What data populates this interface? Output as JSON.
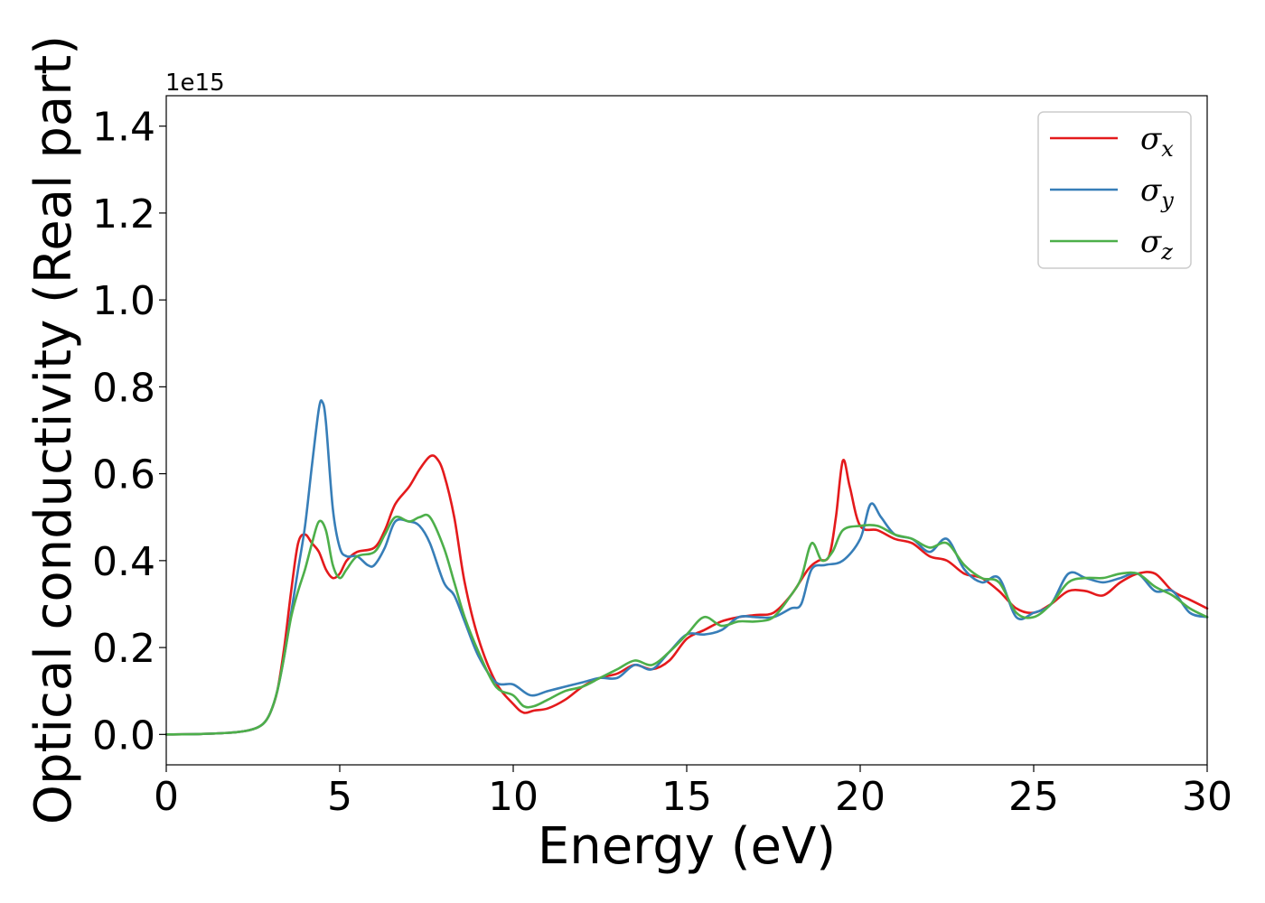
{
  "chart_data": {
    "type": "line",
    "xlabel": "Energy (eV)",
    "ylabel": "Optical conductivity (Real part)",
    "y_offset_text": "1e15",
    "xlim": [
      0,
      30
    ],
    "ylim": [
      -0.07,
      1.47
    ],
    "xticks": [
      0,
      5,
      10,
      15,
      20,
      25,
      30
    ],
    "xtick_labels": [
      "0",
      "5",
      "10",
      "15",
      "20",
      "25",
      "30"
    ],
    "yticks": [
      0.0,
      0.2,
      0.4,
      0.6,
      0.8,
      1.0,
      1.2,
      1.4
    ],
    "ytick_labels": [
      "0.0",
      "0.2",
      "0.4",
      "0.6",
      "0.8",
      "1.0",
      "1.2",
      "1.4"
    ],
    "grid": false,
    "legend_position": "top-right",
    "series": [
      {
        "name": "σx",
        "legend_symbol": "σ",
        "legend_subscript": "x",
        "color": "#e41a1c",
        "x": [
          0,
          1,
          2,
          2.5,
          2.8,
          3.0,
          3.2,
          3.4,
          3.6,
          3.8,
          4.0,
          4.2,
          4.4,
          4.6,
          4.8,
          5.0,
          5.2,
          5.5,
          6.0,
          6.3,
          6.6,
          7.0,
          7.3,
          7.6,
          7.8,
          8.0,
          8.3,
          8.6,
          9.0,
          9.5,
          10.0,
          10.3,
          10.6,
          11.0,
          11.5,
          12.0,
          12.5,
          13.0,
          13.5,
          14.0,
          14.5,
          15.0,
          15.5,
          16.0,
          16.5,
          17.0,
          17.5,
          18.0,
          18.5,
          18.8,
          19.1,
          19.3,
          19.5,
          19.7,
          20.0,
          20.5,
          21.0,
          21.5,
          22.0,
          22.5,
          23.0,
          23.5,
          24.0,
          24.5,
          25.0,
          25.5,
          26.0,
          26.5,
          27.0,
          27.5,
          28.0,
          28.5,
          29.0,
          29.5,
          30.0
        ],
        "y": [
          0.0,
          0.001,
          0.005,
          0.012,
          0.025,
          0.05,
          0.1,
          0.2,
          0.33,
          0.44,
          0.46,
          0.44,
          0.42,
          0.38,
          0.36,
          0.37,
          0.4,
          0.42,
          0.43,
          0.47,
          0.53,
          0.57,
          0.61,
          0.64,
          0.635,
          0.6,
          0.5,
          0.35,
          0.22,
          0.12,
          0.07,
          0.05,
          0.055,
          0.06,
          0.08,
          0.11,
          0.13,
          0.14,
          0.16,
          0.15,
          0.17,
          0.22,
          0.24,
          0.26,
          0.27,
          0.275,
          0.28,
          0.32,
          0.38,
          0.4,
          0.41,
          0.5,
          0.63,
          0.57,
          0.48,
          0.47,
          0.45,
          0.44,
          0.41,
          0.4,
          0.37,
          0.36,
          0.33,
          0.29,
          0.28,
          0.3,
          0.33,
          0.33,
          0.32,
          0.35,
          0.37,
          0.37,
          0.33,
          0.31,
          0.29
        ]
      },
      {
        "name": "σy",
        "legend_symbol": "σ",
        "legend_subscript": "y",
        "color": "#377eb8",
        "x": [
          0,
          1,
          2,
          2.5,
          2.8,
          3.0,
          3.2,
          3.4,
          3.6,
          3.8,
          4.0,
          4.2,
          4.4,
          4.5,
          4.6,
          4.8,
          5.0,
          5.2,
          5.5,
          5.8,
          6.0,
          6.3,
          6.6,
          7.0,
          7.3,
          7.6,
          8.0,
          8.3,
          8.6,
          9.0,
          9.5,
          10.0,
          10.5,
          11.0,
          11.5,
          12.0,
          12.5,
          13.0,
          13.5,
          14.0,
          14.5,
          15.0,
          15.5,
          16.0,
          16.5,
          17.0,
          17.5,
          18.0,
          18.3,
          18.6,
          19.0,
          19.5,
          20.0,
          20.3,
          20.6,
          21.0,
          21.5,
          22.0,
          22.5,
          23.0,
          23.5,
          24.0,
          24.5,
          25.0,
          25.5,
          26.0,
          26.5,
          27.0,
          27.5,
          28.0,
          28.5,
          29.0,
          29.5,
          30.0
        ],
        "y": [
          0.0,
          0.001,
          0.005,
          0.012,
          0.025,
          0.05,
          0.1,
          0.18,
          0.28,
          0.38,
          0.48,
          0.62,
          0.75,
          0.765,
          0.72,
          0.52,
          0.43,
          0.41,
          0.41,
          0.39,
          0.39,
          0.43,
          0.49,
          0.49,
          0.48,
          0.44,
          0.35,
          0.32,
          0.26,
          0.18,
          0.12,
          0.115,
          0.09,
          0.1,
          0.11,
          0.12,
          0.13,
          0.13,
          0.16,
          0.15,
          0.19,
          0.23,
          0.23,
          0.24,
          0.27,
          0.27,
          0.27,
          0.29,
          0.3,
          0.38,
          0.39,
          0.4,
          0.45,
          0.53,
          0.5,
          0.46,
          0.45,
          0.42,
          0.45,
          0.38,
          0.35,
          0.36,
          0.27,
          0.28,
          0.3,
          0.37,
          0.36,
          0.35,
          0.36,
          0.37,
          0.33,
          0.33,
          0.28,
          0.27
        ]
      },
      {
        "name": "σz",
        "legend_symbol": "σ",
        "legend_subscript": "z",
        "color": "#4daf4a",
        "x": [
          0,
          1,
          2,
          2.5,
          2.8,
          3.0,
          3.2,
          3.4,
          3.6,
          3.8,
          4.0,
          4.2,
          4.4,
          4.6,
          4.8,
          5.0,
          5.2,
          5.5,
          6.0,
          6.3,
          6.6,
          7.0,
          7.3,
          7.6,
          8.0,
          8.3,
          8.6,
          9.0,
          9.5,
          10.0,
          10.3,
          10.6,
          11.0,
          11.5,
          12.0,
          12.5,
          13.0,
          13.5,
          14.0,
          14.5,
          15.0,
          15.5,
          16.0,
          16.5,
          17.0,
          17.5,
          18.0,
          18.3,
          18.6,
          18.9,
          19.2,
          19.5,
          20.0,
          20.5,
          21.0,
          21.5,
          22.0,
          22.5,
          23.0,
          23.5,
          24.0,
          24.5,
          25.0,
          25.5,
          26.0,
          26.5,
          27.0,
          27.5,
          28.0,
          28.5,
          29.0,
          29.5,
          30.0
        ],
        "y": [
          0.0,
          0.001,
          0.005,
          0.012,
          0.025,
          0.05,
          0.1,
          0.18,
          0.27,
          0.33,
          0.38,
          0.44,
          0.49,
          0.47,
          0.39,
          0.36,
          0.38,
          0.41,
          0.42,
          0.46,
          0.5,
          0.49,
          0.5,
          0.5,
          0.43,
          0.35,
          0.27,
          0.19,
          0.11,
          0.09,
          0.065,
          0.065,
          0.08,
          0.1,
          0.11,
          0.13,
          0.15,
          0.17,
          0.16,
          0.19,
          0.23,
          0.27,
          0.25,
          0.26,
          0.26,
          0.27,
          0.32,
          0.36,
          0.44,
          0.4,
          0.42,
          0.47,
          0.48,
          0.48,
          0.46,
          0.45,
          0.43,
          0.44,
          0.39,
          0.36,
          0.35,
          0.28,
          0.27,
          0.3,
          0.35,
          0.36,
          0.36,
          0.37,
          0.37,
          0.34,
          0.32,
          0.29,
          0.27
        ]
      }
    ]
  }
}
